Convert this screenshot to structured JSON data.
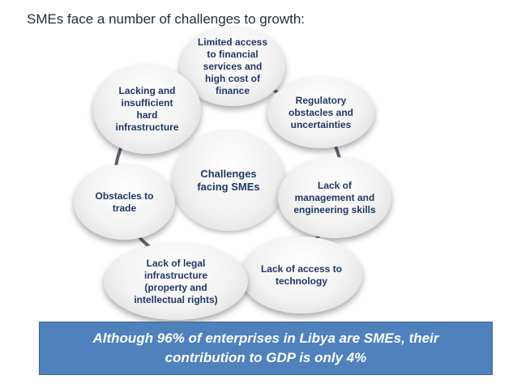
{
  "title": "SMEs face a number of challenges to growth:",
  "center": "Challenges facing SMEs",
  "nodes": [
    {
      "id": "finance",
      "label": "Limited access to financial services and high cost of finance"
    },
    {
      "id": "regulatory",
      "label": "Regulatory obstacles and uncertainties"
    },
    {
      "id": "management",
      "label": "Lack of management and engineering skills"
    },
    {
      "id": "technology",
      "label": "Lack of access to technology"
    },
    {
      "id": "legal",
      "label": "Lack of legal infrastructure (property and intellectual rights)"
    },
    {
      "id": "trade",
      "label": "Obstacles to trade"
    },
    {
      "id": "infrastructure",
      "label": "Lacking and insufficient hard infrastructure"
    }
  ],
  "banner": "Although 96% of enterprises in Libya are SMEs, their contribution to GDP  is only 4%",
  "colors": {
    "text": "#1f3864",
    "ring": "#5a6472",
    "banner": "#4f81bd"
  }
}
